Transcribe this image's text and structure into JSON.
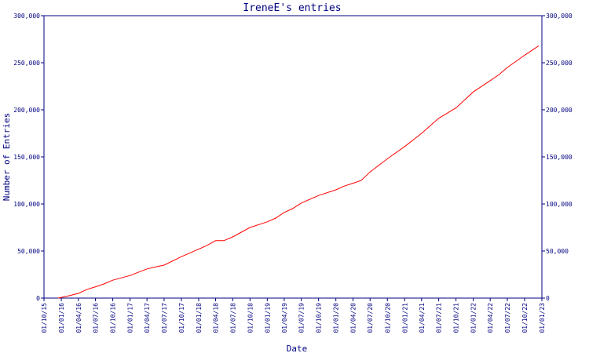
{
  "chart_data": {
    "type": "line",
    "title": "IreneE's entries",
    "xlabel": "Date",
    "ylabel": "Number of Entries",
    "colors": {
      "axis": "#000080",
      "text": "#000080",
      "line": "#ff0000",
      "background": "#ffffff"
    },
    "grid": false,
    "legend": "none",
    "ylim": [
      0,
      300000
    ],
    "yticks": [
      0,
      50000,
      100000,
      150000,
      200000,
      250000,
      300000
    ],
    "ytick_labels": [
      "0",
      "50,000",
      "100,000",
      "150,000",
      "200,000",
      "250,000",
      "300,000"
    ],
    "xlim": [
      "2015-10-01",
      "2023-01-01"
    ],
    "xticks": [
      "2015-10-01",
      "2016-01-01",
      "2016-04-01",
      "2016-07-01",
      "2016-10-01",
      "2017-01-01",
      "2017-04-01",
      "2017-07-01",
      "2017-10-01",
      "2018-01-01",
      "2018-04-01",
      "2018-07-01",
      "2018-10-01",
      "2019-01-01",
      "2019-04-01",
      "2019-07-01",
      "2019-10-01",
      "2020-01-01",
      "2020-04-01",
      "2020-07-01",
      "2020-10-01",
      "2021-01-01",
      "2021-04-01",
      "2021-07-01",
      "2021-10-01",
      "2022-01-01",
      "2022-04-01",
      "2022-07-01",
      "2022-10-01",
      "2023-01-01"
    ],
    "xtick_labels": [
      "01/10/15",
      "01/01/16",
      "01/04/16",
      "01/07/16",
      "01/10/16",
      "01/01/17",
      "01/04/17",
      "01/07/17",
      "01/10/17",
      "01/01/18",
      "01/04/18",
      "01/07/18",
      "01/10/18",
      "01/01/19",
      "01/04/19",
      "01/07/19",
      "01/10/19",
      "01/01/20",
      "01/04/20",
      "01/07/20",
      "01/10/20",
      "01/01/21",
      "01/04/21",
      "01/07/21",
      "01/10/21",
      "01/01/22",
      "01/04/22",
      "01/07/22",
      "01/10/22",
      "01/01/23"
    ],
    "series": [
      {
        "points": [
          [
            "2015-12-15",
            0
          ],
          [
            "2016-02-01",
            2000
          ],
          [
            "2016-04-01",
            5000
          ],
          [
            "2016-05-15",
            9000
          ],
          [
            "2016-07-01",
            12000
          ],
          [
            "2016-08-15",
            15000
          ],
          [
            "2016-10-01",
            19000
          ],
          [
            "2017-01-01",
            24000
          ],
          [
            "2017-04-01",
            31000
          ],
          [
            "2017-05-15",
            33000
          ],
          [
            "2017-07-01",
            35000
          ],
          [
            "2017-10-01",
            44000
          ],
          [
            "2018-01-01",
            52000
          ],
          [
            "2018-02-15",
            56000
          ],
          [
            "2018-04-01",
            61000
          ],
          [
            "2018-05-15",
            61000
          ],
          [
            "2018-07-01",
            65000
          ],
          [
            "2018-10-01",
            75000
          ],
          [
            "2019-01-01",
            81000
          ],
          [
            "2019-02-15",
            85000
          ],
          [
            "2019-04-01",
            91000
          ],
          [
            "2019-05-15",
            95000
          ],
          [
            "2019-07-01",
            101000
          ],
          [
            "2019-10-01",
            109000
          ],
          [
            "2020-01-01",
            115000
          ],
          [
            "2020-02-15",
            119000
          ],
          [
            "2020-04-01",
            122000
          ],
          [
            "2020-05-15",
            125000
          ],
          [
            "2020-07-01",
            134000
          ],
          [
            "2020-10-01",
            148000
          ],
          [
            "2021-01-01",
            161000
          ],
          [
            "2021-04-01",
            175000
          ],
          [
            "2021-07-01",
            191000
          ],
          [
            "2021-10-01",
            202000
          ],
          [
            "2022-01-01",
            219000
          ],
          [
            "2022-04-01",
            231000
          ],
          [
            "2022-05-15",
            237000
          ],
          [
            "2022-07-01",
            245000
          ],
          [
            "2022-10-01",
            258000
          ],
          [
            "2022-12-15",
            268000
          ]
        ]
      }
    ]
  }
}
